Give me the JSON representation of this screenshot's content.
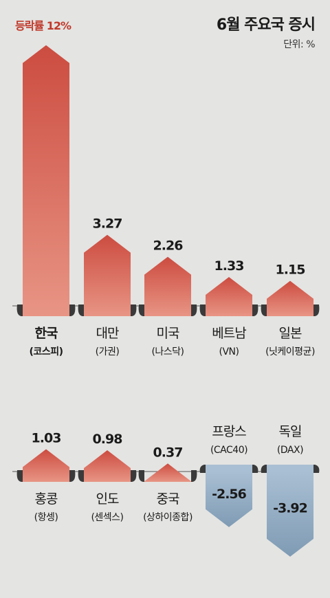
{
  "header": {
    "title": "6월 주요국 증시",
    "unit": "단위: %",
    "highlight": "등락률 12%"
  },
  "colors": {
    "positive_top": "#cc4c40",
    "positive_bottom": "#e89585",
    "negative_top": "#a9bfd3",
    "negative_bottom": "#7f9bb4",
    "baseline": "#555555",
    "background": "#e4e4e2"
  },
  "chart_data": [
    {
      "type": "bar",
      "categories": [
        "한국",
        "대만",
        "미국",
        "베트남",
        "일본"
      ],
      "sublabels": [
        "(코스피)",
        "(가권)",
        "(나스닥)",
        "(VN)",
        "(닛케이평균)"
      ],
      "values": [
        12,
        3.27,
        2.26,
        1.33,
        1.15
      ],
      "value_labels": [
        "",
        "3.27",
        "2.26",
        "1.33",
        "1.15"
      ]
    },
    {
      "type": "bar",
      "categories": [
        "홍콩",
        "인도",
        "중국",
        "프랑스",
        "독일"
      ],
      "sublabels": [
        "(항셍)",
        "(센섹스)",
        "(상하이종합)",
        "(CAC40)",
        "(DAX)"
      ],
      "values": [
        1.03,
        0.98,
        0.37,
        -2.56,
        -3.92
      ],
      "value_labels": [
        "1.03",
        "0.98",
        "0.37",
        "-2.56",
        "-3.92"
      ]
    }
  ]
}
